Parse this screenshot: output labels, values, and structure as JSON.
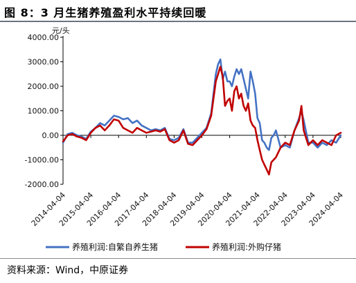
{
  "figure_title": "图 8：3 月生猪养殖盈利水平持续回暖",
  "source_note": "资料来源：Wind，中原证券",
  "chart_data": {
    "type": "line",
    "y_unit": "元/头",
    "ylim": [
      -2000,
      4000
    ],
    "y_ticks": [
      -2000,
      -1000,
      0,
      1000,
      2000,
      3000,
      4000
    ],
    "y_tick_labels": [
      "-2000.00",
      "-1000.00",
      "0.00",
      "1000.00",
      "2000.00",
      "3000.00",
      "4000.00"
    ],
    "xlim": [
      "2014-04",
      "2024-04"
    ],
    "x_tick_labels": [
      "2014-04-04",
      "2015-04-04",
      "2016-04-04",
      "2017-04-04",
      "2018-04-04",
      "2019-04-04",
      "2020-04-04",
      "2021-04-04",
      "2022-04-04",
      "2023-04-04",
      "2024-04-04"
    ],
    "grid": false,
    "legend": "bottom",
    "series": [
      {
        "name": "养殖利润:自繁自养生猪",
        "color": "#4472C4",
        "x": [
          "2014-04",
          "2014-06",
          "2014-08",
          "2014-10",
          "2014-12",
          "2015-02",
          "2015-04",
          "2015-06",
          "2015-08",
          "2015-10",
          "2015-12",
          "2016-02",
          "2016-04",
          "2016-06",
          "2016-08",
          "2016-10",
          "2016-12",
          "2017-02",
          "2017-04",
          "2017-06",
          "2017-08",
          "2017-10",
          "2017-12",
          "2018-02",
          "2018-04",
          "2018-06",
          "2018-08",
          "2018-10",
          "2018-12",
          "2019-02",
          "2019-04",
          "2019-06",
          "2019-08",
          "2019-10",
          "2019-11",
          "2019-12",
          "2020-01",
          "2020-02",
          "2020-03",
          "2020-04",
          "2020-05",
          "2020-06",
          "2020-07",
          "2020-08",
          "2020-09",
          "2020-10",
          "2020-11",
          "2020-12",
          "2021-01",
          "2021-02",
          "2021-03",
          "2021-04",
          "2021-05",
          "2021-06",
          "2021-07",
          "2021-08",
          "2021-09",
          "2021-10",
          "2021-11",
          "2021-12",
          "2022-02",
          "2022-04",
          "2022-06",
          "2022-08",
          "2022-10",
          "2022-11",
          "2022-12",
          "2023-02",
          "2023-04",
          "2023-06",
          "2023-08",
          "2023-10",
          "2023-12",
          "2024-02",
          "2024-04"
        ],
        "y": [
          -300,
          50,
          100,
          0,
          -50,
          -150,
          150,
          300,
          500,
          400,
          600,
          800,
          750,
          650,
          700,
          500,
          600,
          400,
          300,
          200,
          250,
          200,
          300,
          -150,
          -200,
          -100,
          250,
          -300,
          -300,
          -100,
          100,
          300,
          900,
          2500,
          2900,
          3100,
          2300,
          2600,
          2200,
          2200,
          2000,
          2400,
          2700,
          2500,
          2700,
          2300,
          1900,
          1500,
          2600,
          2200,
          1700,
          700,
          500,
          -200,
          -300,
          -500,
          -600,
          -100,
          0,
          200,
          -500,
          -400,
          -500,
          200,
          700,
          1000,
          600,
          -300,
          -300,
          -500,
          -300,
          -400,
          -200,
          -300,
          0
        ]
      },
      {
        "name": "养殖利润:外购仔猪",
        "color": "#C00000",
        "x": [
          "2014-04",
          "2014-06",
          "2014-08",
          "2014-10",
          "2014-12",
          "2015-02",
          "2015-04",
          "2015-06",
          "2015-08",
          "2015-10",
          "2015-12",
          "2016-02",
          "2016-04",
          "2016-06",
          "2016-08",
          "2016-10",
          "2016-12",
          "2017-02",
          "2017-04",
          "2017-06",
          "2017-08",
          "2017-10",
          "2017-12",
          "2018-02",
          "2018-04",
          "2018-06",
          "2018-08",
          "2018-10",
          "2018-12",
          "2019-02",
          "2019-04",
          "2019-06",
          "2019-08",
          "2019-10",
          "2019-11",
          "2019-12",
          "2020-01",
          "2020-02",
          "2020-03",
          "2020-04",
          "2020-05",
          "2020-06",
          "2020-07",
          "2020-08",
          "2020-09",
          "2020-10",
          "2020-11",
          "2020-12",
          "2021-01",
          "2021-02",
          "2021-03",
          "2021-04",
          "2021-05",
          "2021-06",
          "2021-07",
          "2021-08",
          "2021-09",
          "2021-10",
          "2021-11",
          "2021-12",
          "2022-02",
          "2022-04",
          "2022-06",
          "2022-08",
          "2022-10",
          "2022-11",
          "2022-12",
          "2023-02",
          "2023-04",
          "2023-06",
          "2023-08",
          "2023-10",
          "2023-12",
          "2024-02",
          "2024-04"
        ],
        "y": [
          -250,
          0,
          50,
          -50,
          -100,
          -200,
          100,
          300,
          400,
          200,
          400,
          650,
          600,
          300,
          200,
          100,
          300,
          200,
          100,
          150,
          200,
          150,
          250,
          -200,
          -300,
          -200,
          200,
          -350,
          -400,
          -200,
          0,
          250,
          800,
          2200,
          2500,
          2800,
          2400,
          1200,
          1400,
          1500,
          1000,
          1800,
          2000,
          1500,
          1700,
          1200,
          1000,
          1300,
          600,
          400,
          300,
          -200,
          -600,
          -1000,
          -1200,
          -1400,
          -1600,
          -1100,
          -1000,
          -900,
          -500,
          -300,
          -400,
          200,
          600,
          1200,
          200,
          -400,
          -200,
          -400,
          -200,
          -300,
          -400,
          0,
          100
        ]
      }
    ]
  }
}
